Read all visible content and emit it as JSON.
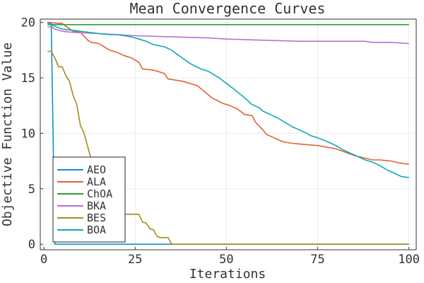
{
  "chart_data": {
    "type": "line",
    "title": "Mean Convergence Curves",
    "xlabel": "Iterations",
    "ylabel": "Objective Function Value",
    "xlim": [
      -1,
      102
    ],
    "ylim": [
      -0.5,
      20.3
    ],
    "xticks": [
      0,
      25,
      50,
      75,
      100
    ],
    "yticks": [
      0,
      5,
      10,
      15,
      20
    ],
    "grid": true,
    "legend_position": "bottom-left",
    "series": [
      {
        "name": "AEO",
        "color": "#0d8fd3",
        "x": [
          1,
          2,
          3,
          100
        ],
        "y": [
          20.0,
          19.9,
          0.0,
          0.0
        ]
      },
      {
        "name": "ALA",
        "color": "#e26234",
        "x": [
          1,
          5,
          8,
          10,
          12,
          13,
          15,
          18,
          20,
          22,
          24,
          26,
          27,
          30,
          33,
          34,
          38,
          42,
          46,
          49,
          51,
          53,
          55,
          57,
          58,
          60,
          61,
          63,
          65,
          66,
          68,
          71,
          75,
          80,
          85,
          90,
          92,
          95,
          98,
          100
        ],
        "y": [
          20.0,
          19.9,
          19.2,
          19.1,
          18.4,
          18.2,
          18.1,
          17.5,
          17.3,
          17.0,
          16.8,
          16.4,
          15.8,
          15.7,
          15.4,
          14.9,
          14.7,
          14.3,
          13.2,
          12.7,
          12.5,
          12.2,
          11.7,
          11.6,
          11.0,
          10.3,
          9.9,
          9.6,
          9.3,
          9.2,
          9.1,
          9.0,
          8.9,
          8.6,
          8.0,
          7.6,
          7.6,
          7.5,
          7.3,
          7.2
        ]
      },
      {
        "name": "ChOA",
        "color": "#2b9f3a",
        "x": [
          1,
          100
        ],
        "y": [
          19.8,
          19.8
        ]
      },
      {
        "name": "BKA",
        "color": "#b86fd6",
        "x": [
          1,
          2,
          3,
          5,
          8,
          15,
          25,
          35,
          45,
          50,
          60,
          70,
          80,
          88,
          90,
          95,
          100
        ],
        "y": [
          19.6,
          19.6,
          19.4,
          19.2,
          19.1,
          19.0,
          18.8,
          18.7,
          18.6,
          18.5,
          18.4,
          18.3,
          18.3,
          18.3,
          18.2,
          18.2,
          18.1
        ]
      },
      {
        "name": "BES",
        "color": "#a28e1a",
        "x": [
          1,
          2,
          3,
          4,
          5,
          6,
          7,
          8,
          9,
          10,
          11,
          12,
          13,
          14,
          15,
          16,
          17,
          18,
          19,
          20,
          22,
          24,
          26,
          27,
          28,
          29,
          30,
          31,
          32,
          34,
          35,
          100
        ],
        "y": [
          17.4,
          17.4,
          16.8,
          16.0,
          16.0,
          15.2,
          14.7,
          13.4,
          12.6,
          10.7,
          10.0,
          8.8,
          7.6,
          6.8,
          5.8,
          5.0,
          4.5,
          4.0,
          4.0,
          3.2,
          2.7,
          2.7,
          2.7,
          2.0,
          1.9,
          1.4,
          1.3,
          0.7,
          0.6,
          0.6,
          0.0,
          0.0
        ]
      },
      {
        "name": "BOA",
        "color": "#11aab0",
        "x": [
          1,
          5,
          10,
          15,
          18,
          20,
          22,
          24,
          26,
          28,
          30,
          33,
          35,
          37,
          40,
          43,
          45,
          48,
          50,
          52,
          55,
          57,
          59,
          60,
          62,
          64,
          66,
          68,
          70,
          72,
          73,
          75,
          78,
          80,
          82,
          84,
          86,
          88,
          90,
          92,
          94,
          96,
          98,
          100
        ],
        "y": [
          19.9,
          19.4,
          19.2,
          19.0,
          18.9,
          18.9,
          18.8,
          18.7,
          18.5,
          18.3,
          18.0,
          17.8,
          17.5,
          17.0,
          16.3,
          15.8,
          15.6,
          15.0,
          14.5,
          14.0,
          13.2,
          12.6,
          12.3,
          12.0,
          11.7,
          11.4,
          11.0,
          10.6,
          10.3,
          10.0,
          9.8,
          9.6,
          9.2,
          8.9,
          8.5,
          8.2,
          7.9,
          7.6,
          7.4,
          7.1,
          6.7,
          6.4,
          6.1,
          6.0
        ]
      }
    ]
  }
}
